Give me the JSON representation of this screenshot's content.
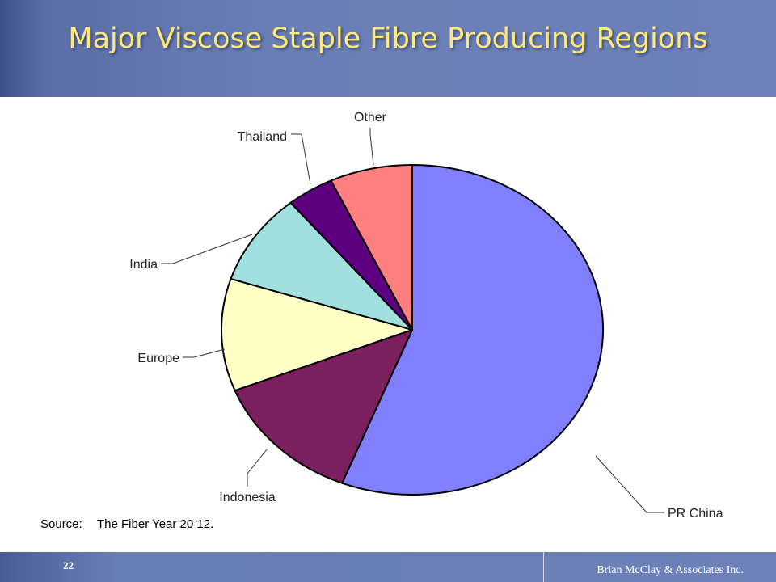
{
  "slide": {
    "title": "Major Viscose Staple Fibre Producing Regions",
    "source_label": "Source:",
    "source_text": "The Fiber Year 20 12.",
    "page_number": "22",
    "credit": "Brian McClay & Associates Inc."
  },
  "colors": {
    "header_bg": "#6d81b8",
    "title_text": "#ffe97a"
  },
  "chart_data": {
    "type": "pie",
    "title": "",
    "slices": [
      {
        "label": "PR China",
        "value": 56.0,
        "color": "#8080ff"
      },
      {
        "label": "Indonesia",
        "value": 13.0,
        "color": "#7b1f5f"
      },
      {
        "label": "Europe",
        "value": 11.0,
        "color": "#ffffc6"
      },
      {
        "label": "India",
        "value": 9.0,
        "color": "#a2e0e0"
      },
      {
        "label": "Thailand",
        "value": 4.0,
        "color": "#5c0080"
      },
      {
        "label": "Other",
        "value": 7.0,
        "color": "#ff8080"
      }
    ],
    "start": "12 o'clock",
    "direction": "clockwise",
    "legend": "none"
  }
}
